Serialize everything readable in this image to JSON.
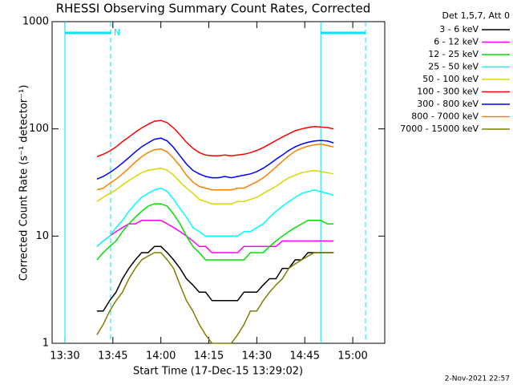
{
  "chart_data": {
    "type": "line",
    "title": "RHESSI Observing Summary Count Rates, Corrected",
    "xlabel": "Start Time (17-Dec-15 13:29:02)",
    "ylabel": "Corrected Count Rate (s⁻¹ detector⁻¹)",
    "legend_title": "Det 1,5,7, Att 0",
    "footer": "2-Nov-2021 22:57",
    "log_y": true,
    "xlim": [
      806,
      910
    ],
    "ylim": [
      1,
      1000
    ],
    "xticks": [
      {
        "value": 810,
        "label": "13:30"
      },
      {
        "value": 825,
        "label": "13:45"
      },
      {
        "value": 840,
        "label": "14:00"
      },
      {
        "value": 855,
        "label": "14:15"
      },
      {
        "value": 870,
        "label": "14:30"
      },
      {
        "value": 885,
        "label": "14:45"
      },
      {
        "value": 900,
        "label": "15:00"
      }
    ],
    "yticks": [
      1,
      10,
      100,
      1000
    ],
    "intervals": [
      {
        "start": 810,
        "end": 824.3,
        "label": "N"
      },
      {
        "start": 890,
        "end": 904
      }
    ],
    "interval_color": "#00e5ee",
    "x": [
      820,
      822,
      824,
      826,
      828,
      830,
      832,
      834,
      836,
      838,
      840,
      842,
      844,
      846,
      848,
      850,
      852,
      854,
      856,
      858,
      860,
      862,
      864,
      866,
      868,
      870,
      872,
      874,
      876,
      878,
      880,
      882,
      884,
      886,
      888,
      890,
      892,
      894
    ],
    "series": [
      {
        "name": "3 - 6 keV",
        "color": "#000000",
        "values": [
          2,
          2,
          2.5,
          3,
          4,
          5,
          6,
          7,
          7,
          8,
          8,
          7,
          6,
          5,
          4,
          3.5,
          3,
          3,
          2.5,
          2.5,
          2.5,
          2.5,
          2.5,
          3,
          3,
          3,
          3.5,
          4,
          4,
          5,
          5,
          6,
          6,
          7,
          7,
          7,
          7,
          7
        ]
      },
      {
        "name": "6 - 12 keV",
        "color": "#ff00ff",
        "values": [
          8,
          9,
          10,
          11,
          12,
          13,
          13,
          14,
          14,
          14,
          14,
          13,
          12,
          11,
          10,
          9,
          8,
          8,
          7,
          7,
          7,
          7,
          7,
          8,
          8,
          8,
          8,
          8,
          8,
          9,
          9,
          9,
          9,
          9,
          9,
          9,
          9,
          9
        ]
      },
      {
        "name": "12 - 25 keV",
        "color": "#00e000",
        "values": [
          6,
          7,
          8,
          9,
          11,
          13,
          15,
          17,
          19,
          20,
          20,
          19,
          16,
          13,
          10,
          8,
          7,
          6,
          6,
          6,
          6,
          6,
          6,
          6,
          7,
          7,
          7,
          8,
          9,
          10,
          11,
          12,
          13,
          14,
          14,
          14,
          13,
          13
        ]
      },
      {
        "name": "25 - 50 keV",
        "color": "#00ffff",
        "values": [
          8,
          9,
          10,
          12,
          14,
          17,
          20,
          23,
          25,
          27,
          28,
          26,
          22,
          18,
          15,
          12,
          11,
          10,
          10,
          10,
          10,
          10,
          10,
          11,
          11,
          12,
          13,
          15,
          17,
          19,
          21,
          23,
          25,
          26,
          27,
          26,
          25,
          24
        ]
      },
      {
        "name": "50 - 100 keV",
        "color": "#d8d800",
        "values": [
          21,
          23,
          25,
          27,
          30,
          33,
          36,
          39,
          41,
          42,
          43,
          41,
          37,
          32,
          28,
          25,
          22,
          21,
          20,
          20,
          20,
          20,
          21,
          21,
          22,
          23,
          25,
          27,
          29,
          32,
          35,
          37,
          39,
          40,
          41,
          40,
          39,
          38
        ]
      },
      {
        "name": "100 - 300 keV",
        "color": "#ff0000",
        "values": [
          55,
          58,
          62,
          68,
          76,
          84,
          93,
          102,
          110,
          118,
          120,
          114,
          102,
          88,
          75,
          66,
          60,
          57,
          56,
          56,
          57,
          56,
          57,
          58,
          60,
          63,
          67,
          72,
          78,
          84,
          90,
          96,
          100,
          103,
          105,
          104,
          103,
          100
        ]
      },
      {
        "name": "300 - 800 keV",
        "color": "#0000ff",
        "values": [
          34,
          36,
          39,
          43,
          48,
          54,
          61,
          68,
          74,
          80,
          82,
          77,
          67,
          56,
          47,
          41,
          38,
          36,
          35,
          35,
          36,
          35,
          36,
          37,
          38,
          40,
          43,
          47,
          52,
          57,
          63,
          68,
          72,
          75,
          77,
          78,
          77,
          74
        ]
      },
      {
        "name": "800 - 7000 keV",
        "color": "#ff8000",
        "values": [
          27,
          28,
          31,
          34,
          38,
          43,
          49,
          55,
          60,
          64,
          65,
          61,
          53,
          45,
          37,
          32,
          29,
          28,
          27,
          27,
          27,
          27,
          28,
          28,
          30,
          32,
          35,
          39,
          44,
          50,
          56,
          62,
          66,
          69,
          71,
          72,
          70,
          68
        ]
      },
      {
        "name": "7000 - 15000 keV",
        "color": "#808000",
        "values": [
          1.2,
          1.5,
          2,
          2.5,
          3,
          4,
          5,
          6,
          6.5,
          7,
          7,
          6,
          5,
          3.5,
          2.5,
          2,
          1.5,
          1.2,
          1,
          1,
          1,
          1,
          1.2,
          1.5,
          2,
          2,
          2.5,
          3,
          3.5,
          4,
          5,
          5.5,
          6,
          6.5,
          7,
          7,
          7,
          7
        ]
      }
    ]
  }
}
